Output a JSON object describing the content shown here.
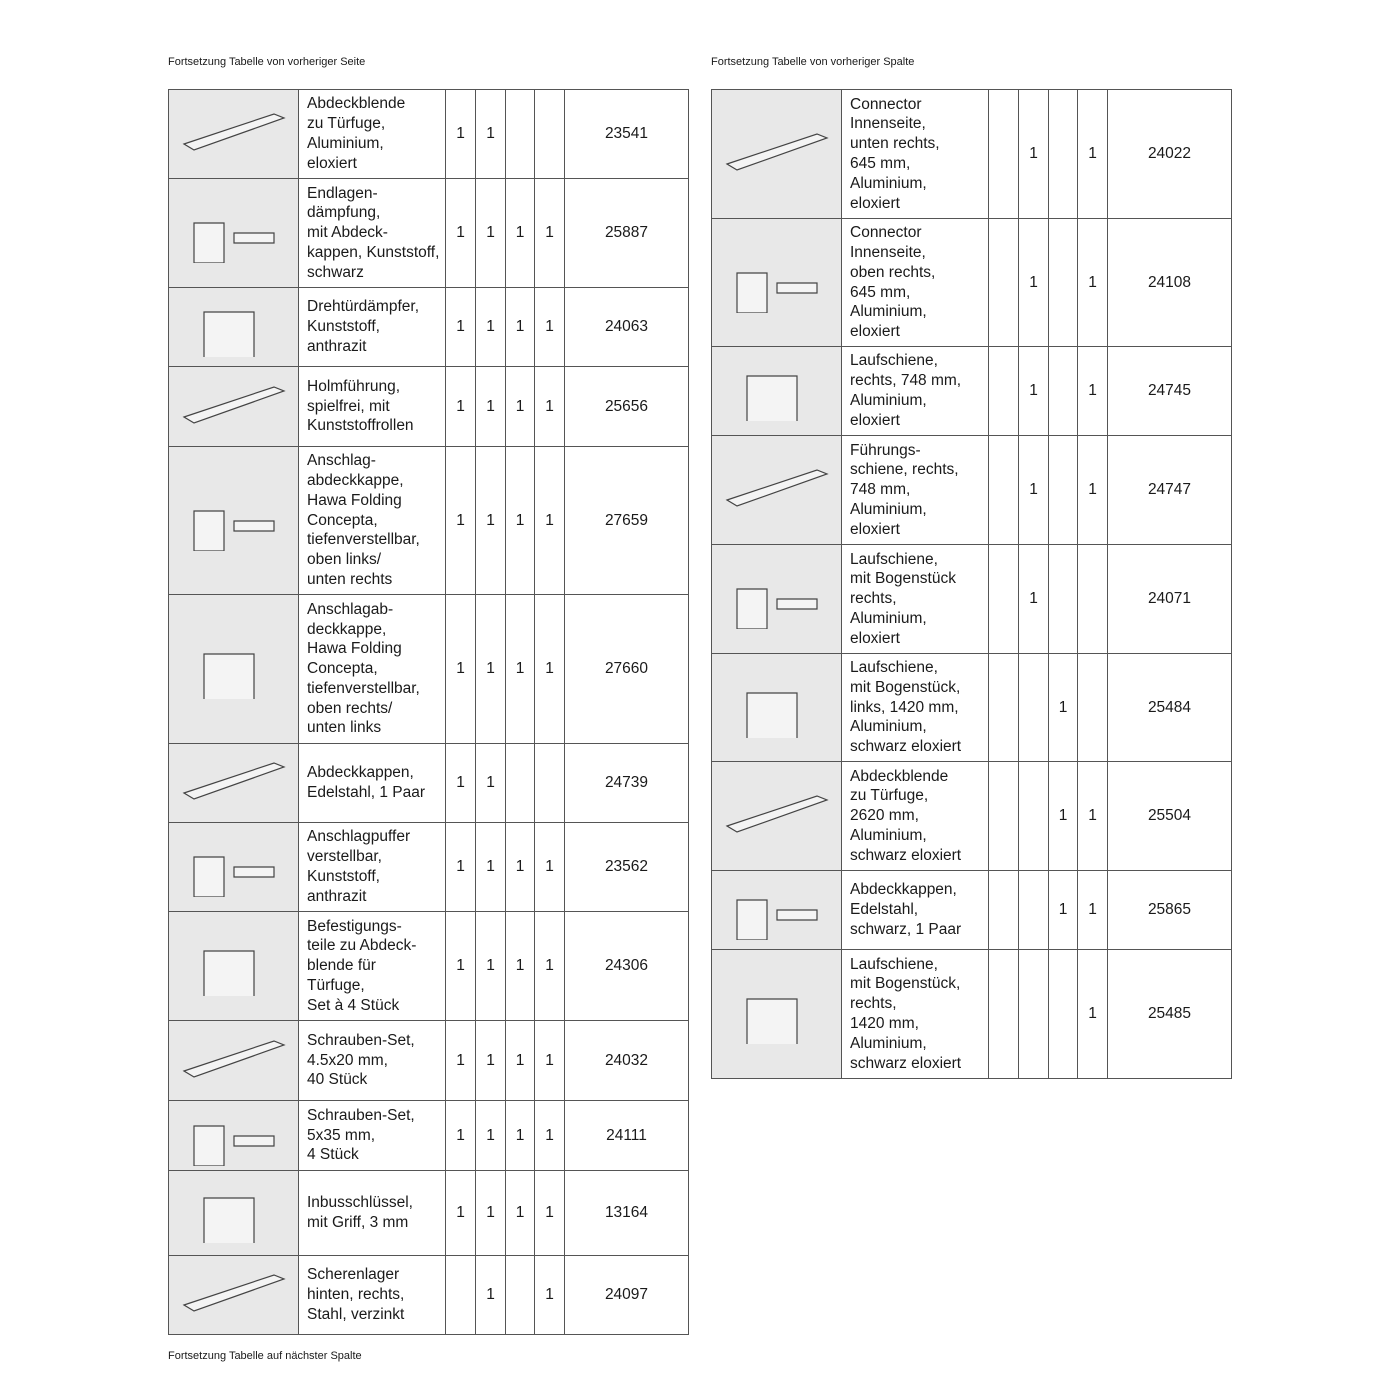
{
  "notes": {
    "left_top": "Fortsetzung Tabelle von vorheriger Seite",
    "right_top": "Fortsetzung Tabelle von vorheriger Spalte",
    "left_bottom": "Fortsetzung Tabelle auf nächster Spalte"
  },
  "left_table": [
    {
      "desc": "Abdeckblende\nzu Türfuge,\nAluminium,\neloxiert",
      "q": [
        "1",
        "1",
        "",
        ""
      ],
      "art": "23541"
    },
    {
      "desc": "Endlagen-\ndämpfung,\nmit Abdeck-\nkappen, Kunststoff,\nschwarz",
      "q": [
        "1",
        "1",
        "1",
        "1"
      ],
      "art": "25887"
    },
    {
      "desc": "Drehtürdämpfer,\nKunststoff,\nanthrazit",
      "q": [
        "1",
        "1",
        "1",
        "1"
      ],
      "art": "24063"
    },
    {
      "desc": "Holmführung,\nspielfrei, mit\nKunststoffrollen",
      "q": [
        "1",
        "1",
        "1",
        "1"
      ],
      "art": "25656"
    },
    {
      "desc": "Anschlag-\nabdeckkappe,\nHawa Folding\nConcepta,\ntiefenverstellbar,\noben links/\nunten rechts",
      "q": [
        "1",
        "1",
        "1",
        "1"
      ],
      "art": "27659"
    },
    {
      "desc": "Anschlagab-\ndeckkappe,\nHawa Folding\nConcepta,\ntiefenverstellbar,\noben rechts/\nunten links",
      "q": [
        "1",
        "1",
        "1",
        "1"
      ],
      "art": "27660"
    },
    {
      "desc": "Abdeckkappen,\nEdelstahl, 1 Paar",
      "q": [
        "1",
        "1",
        "",
        ""
      ],
      "art": "24739"
    },
    {
      "desc": "Anschlagpuffer\nverstellbar,\nKunststoff,\nanthrazit",
      "q": [
        "1",
        "1",
        "1",
        "1"
      ],
      "art": "23562"
    },
    {
      "desc": "Befestigungs-\nteile zu Abdeck-\nblende für\nTürfuge,\nSet à 4 Stück",
      "q": [
        "1",
        "1",
        "1",
        "1"
      ],
      "art": "24306"
    },
    {
      "desc": "Schrauben-Set,\n4.5x20 mm,\n40 Stück",
      "q": [
        "1",
        "1",
        "1",
        "1"
      ],
      "art": "24032"
    },
    {
      "desc": "Schrauben-Set,\n5x35 mm,\n4 Stück",
      "q": [
        "1",
        "1",
        "1",
        "1"
      ],
      "art": "24111"
    },
    {
      "desc": "Inbusschlüssel,\nmit Griff, 3 mm",
      "q": [
        "1",
        "1",
        "1",
        "1"
      ],
      "art": "13164"
    },
    {
      "desc": "Scherenlager\nhinten, rechts,\nStahl, verzinkt",
      "q": [
        "",
        "1",
        "",
        "1"
      ],
      "art": "24097"
    }
  ],
  "right_table": [
    {
      "desc": "Connector\nInnenseite,\nunten rechts,\n645 mm,\nAluminium,\neloxiert",
      "q": [
        "",
        "1",
        "",
        "1"
      ],
      "art": "24022"
    },
    {
      "desc": "Connector\nInnenseite,\noben rechts,\n645 mm,\nAluminium,\neloxiert",
      "q": [
        "",
        "1",
        "",
        "1"
      ],
      "art": "24108"
    },
    {
      "desc": "Laufschiene,\nrechts, 748 mm,\nAluminium,\neloxiert",
      "q": [
        "",
        "1",
        "",
        "1"
      ],
      "art": "24745"
    },
    {
      "desc": "Führungs-\nschiene, rechts,\n748 mm,\nAluminium,\neloxiert",
      "q": [
        "",
        "1",
        "",
        "1"
      ],
      "art": "24747"
    },
    {
      "desc": "Laufschiene,\nmit Bogenstück\nrechts,\nAluminium,\neloxiert",
      "q": [
        "",
        "1",
        "",
        ""
      ],
      "art": "24071"
    },
    {
      "desc": "Laufschiene,\nmit Bogenstück,\nlinks, 1420 mm,\nAluminium,\nschwarz eloxiert",
      "q": [
        "",
        "",
        "1",
        ""
      ],
      "art": "25484"
    },
    {
      "desc": "Abdeckblende\nzu Türfuge,\n2620 mm,\nAluminium,\nschwarz eloxiert",
      "q": [
        "",
        "",
        "1",
        "1"
      ],
      "art": "25504"
    },
    {
      "desc": "Abdeckkappen,\nEdelstahl,\nschwarz, 1 Paar",
      "q": [
        "",
        "",
        "1",
        "1"
      ],
      "art": "25865"
    },
    {
      "desc": "Laufschiene,\nmit Bogenstück,\nrechts,\n1420 mm,\nAluminium,\nschwarz eloxiert",
      "q": [
        "",
        "",
        "",
        "1"
      ],
      "art": "25485"
    }
  ]
}
